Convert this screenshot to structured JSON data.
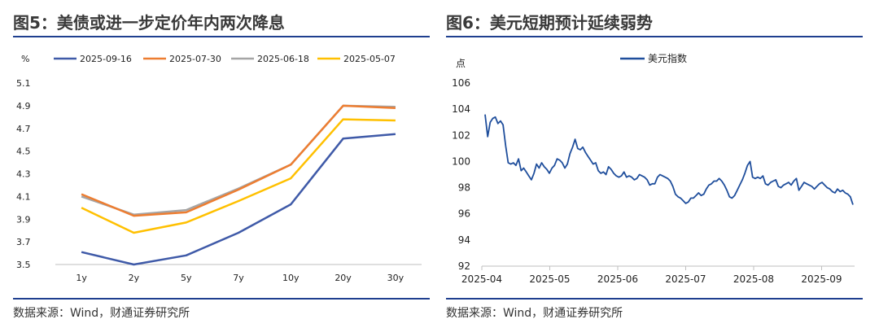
{
  "charts": {
    "left": {
      "title": "图5：美债或进一步定价年内两次降息",
      "source": "数据来源：Wind，财通证券研究所"
    },
    "right": {
      "title": "图6：美元短期预计延续弱势",
      "source": "数据来源：Wind，财通证券研究所"
    }
  },
  "chart_data": [
    {
      "type": "line",
      "ylabel": "%",
      "categories": [
        "1y",
        "2y",
        "5y",
        "7y",
        "10y",
        "20y",
        "30y"
      ],
      "ylim": [
        3.5,
        5.1
      ],
      "yticks": [
        3.5,
        3.7,
        3.9,
        4.1,
        4.3,
        4.5,
        4.7,
        4.9,
        5.1
      ],
      "legend_position": "top",
      "grid": false,
      "series": [
        {
          "name": "2025-09-16",
          "color": "#3f5aa8",
          "values": [
            3.61,
            3.5,
            3.58,
            3.78,
            4.03,
            4.61,
            4.65
          ]
        },
        {
          "name": "2025-07-30",
          "color": "#ed7d31",
          "values": [
            4.12,
            3.93,
            3.96,
            4.16,
            4.38,
            4.9,
            4.88
          ]
        },
        {
          "name": "2025-06-18",
          "color": "#a5a5a5",
          "values": [
            4.1,
            3.94,
            3.98,
            4.17,
            4.38,
            4.9,
            4.89
          ]
        },
        {
          "name": "2025-05-07",
          "color": "#ffc000",
          "values": [
            4.0,
            3.78,
            3.87,
            4.06,
            4.26,
            4.78,
            4.77
          ]
        }
      ]
    },
    {
      "type": "line",
      "ylabel": "点",
      "xlabels": [
        "2025-04",
        "2025-05",
        "2025-06",
        "2025-07",
        "2025-08",
        "2025-09"
      ],
      "ylim": [
        92,
        106
      ],
      "yticks": [
        92,
        94,
        96,
        98,
        100,
        102,
        104,
        106
      ],
      "legend_position": "top",
      "grid": false,
      "series": [
        {
          "name": "美元指数",
          "color": "#1f4e9c",
          "values": [
            103.6,
            101.9,
            103.0,
            103.3,
            103.4,
            102.9,
            103.1,
            102.8,
            101.2,
            99.9,
            99.8,
            99.9,
            99.7,
            100.2,
            99.3,
            99.5,
            99.2,
            98.9,
            98.6,
            99.1,
            99.8,
            99.5,
            99.9,
            99.6,
            99.4,
            99.1,
            99.5,
            99.7,
            100.2,
            100.1,
            99.9,
            99.5,
            99.8,
            100.6,
            101.1,
            101.7,
            101.0,
            100.9,
            101.1,
            100.7,
            100.4,
            100.1,
            99.8,
            99.9,
            99.3,
            99.1,
            99.2,
            99.0,
            99.6,
            99.4,
            99.1,
            98.9,
            98.8,
            98.9,
            99.2,
            98.8,
            98.9,
            98.8,
            98.6,
            98.7,
            99.0,
            98.9,
            98.8,
            98.6,
            98.2,
            98.3,
            98.3,
            98.8,
            99.0,
            98.9,
            98.8,
            98.7,
            98.5,
            98.1,
            97.5,
            97.3,
            97.2,
            97.0,
            96.8,
            96.9,
            97.2,
            97.2,
            97.4,
            97.6,
            97.4,
            97.5,
            97.9,
            98.2,
            98.3,
            98.5,
            98.5,
            98.7,
            98.5,
            98.2,
            97.8,
            97.3,
            97.2,
            97.4,
            97.8,
            98.2,
            98.6,
            99.1,
            99.7,
            100.0,
            98.8,
            98.7,
            98.8,
            98.7,
            98.9,
            98.3,
            98.2,
            98.4,
            98.5,
            98.6,
            98.1,
            98.0,
            98.2,
            98.3,
            98.4,
            98.2,
            98.5,
            98.7,
            97.8,
            98.1,
            98.4,
            98.3,
            98.2,
            98.1,
            97.9,
            98.1,
            98.3,
            98.4,
            98.2,
            98.0,
            97.9,
            97.7,
            97.6,
            97.9,
            97.7,
            97.8,
            97.6,
            97.5,
            97.3,
            96.7
          ]
        }
      ]
    }
  ]
}
